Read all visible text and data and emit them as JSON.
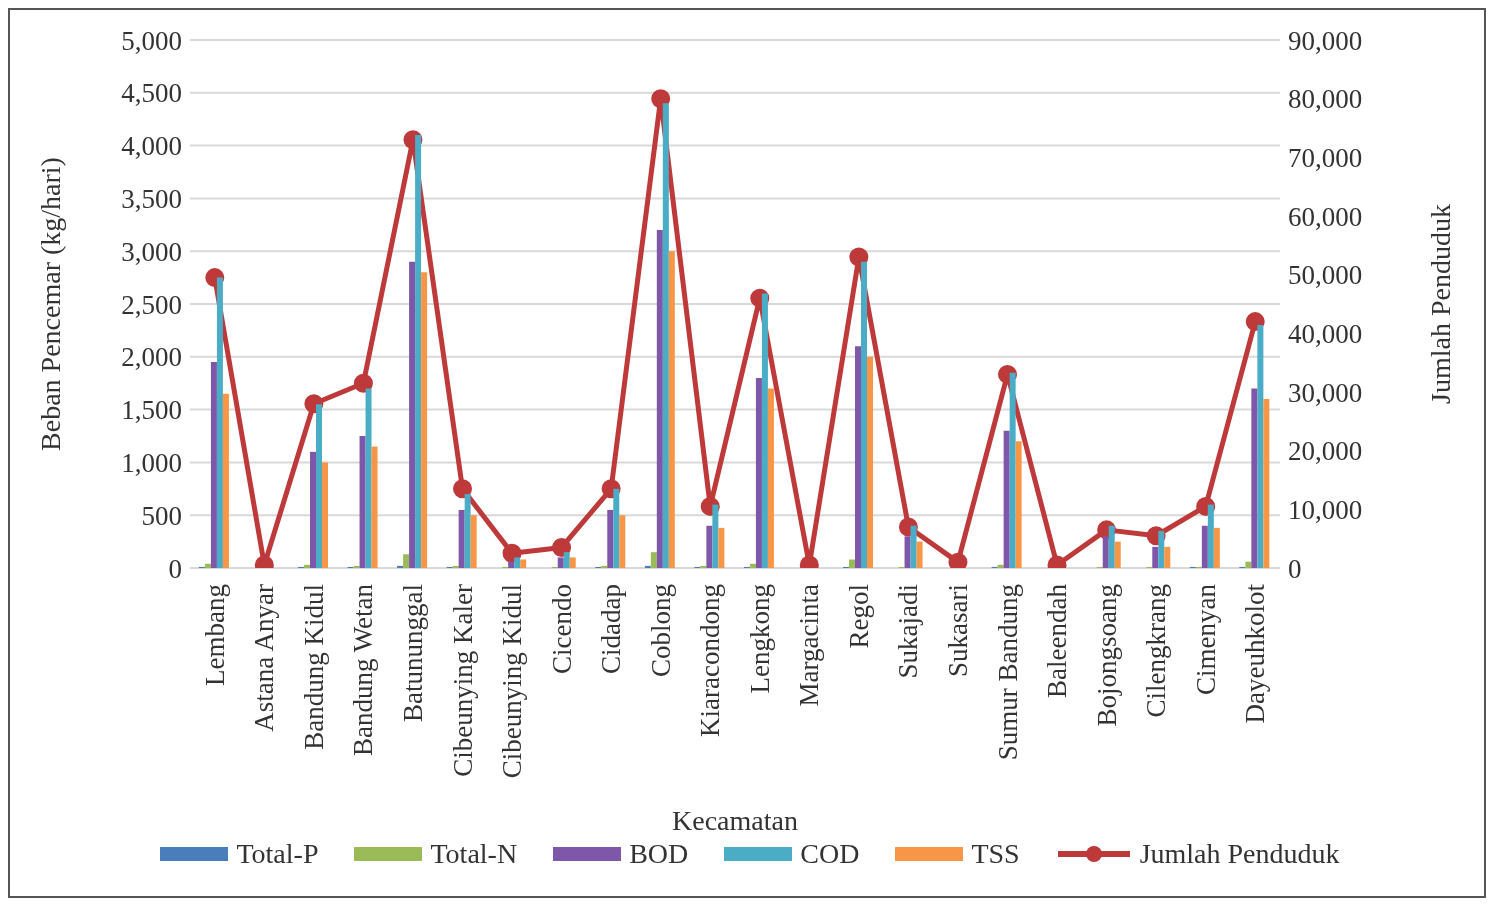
{
  "chart_data": {
    "type": "bar",
    "xlabel": "Kecamatan",
    "ylabel": "Beban Pencemar  (kg/hari)",
    "y2label": "Jumlah  Penduduk",
    "categories": [
      "Lembang",
      "Astana Anyar",
      "Bandung Kidul",
      "Bandung Wetan",
      "Batununggal",
      "Cibeunying Kaler",
      "Cibeunying Kidul",
      "Cicendo",
      "Cidadap",
      "Coblong",
      "Kiaracondong",
      "Lengkong",
      "Margacinta",
      "Regol",
      "Sukajadi",
      "Sukasari",
      "Sumur Bandung",
      "Baleendah",
      "Bojongsoang",
      "Cilengkrang",
      "Cimenyan",
      "Dayeuhkolot"
    ],
    "series": [
      {
        "name": "Total-P",
        "color": "#4a7ebb",
        "values": [
          10,
          0,
          10,
          10,
          20,
          10,
          0,
          0,
          10,
          20,
          10,
          10,
          0,
          10,
          0,
          0,
          10,
          0,
          0,
          0,
          10,
          10
        ]
      },
      {
        "name": "Total-N",
        "color": "#9bbb59",
        "values": [
          40,
          0,
          30,
          20,
          130,
          20,
          10,
          10,
          20,
          150,
          20,
          40,
          0,
          80,
          10,
          0,
          30,
          0,
          10,
          10,
          10,
          60
        ]
      },
      {
        "name": "BOD",
        "color": "#7e57a8",
        "values": [
          1950,
          0,
          1100,
          1250,
          2900,
          550,
          60,
          100,
          550,
          3200,
          400,
          1800,
          0,
          2100,
          300,
          0,
          1300,
          0,
          300,
          200,
          400,
          1700
        ]
      },
      {
        "name": "COD",
        "color": "#4bacc6",
        "values": [
          2750,
          0,
          1550,
          1700,
          4100,
          700,
          100,
          150,
          750,
          4400,
          600,
          2600,
          0,
          2900,
          400,
          0,
          1850,
          0,
          400,
          350,
          600,
          2300
        ]
      },
      {
        "name": "TSS",
        "color": "#f79646",
        "values": [
          1650,
          0,
          1000,
          1150,
          2800,
          500,
          80,
          100,
          500,
          3000,
          380,
          1700,
          0,
          2000,
          250,
          0,
          1200,
          0,
          250,
          200,
          380,
          1600
        ]
      },
      {
        "name": "Jumlah Penduduk",
        "type": "line",
        "axis": "y2",
        "color": "#be3a3a",
        "marker": "circle",
        "values": [
          49500,
          500,
          28000,
          31500,
          73000,
          13500,
          2500,
          3500,
          13500,
          80000,
          10500,
          46000,
          500,
          53000,
          7000,
          1000,
          33000,
          500,
          6500,
          5500,
          10500,
          42000
        ]
      }
    ],
    "ylim": [
      0,
      5000
    ],
    "yticks": [
      {
        "value": 0,
        "label": "0"
      },
      {
        "value": 500,
        "label": "500"
      },
      {
        "value": 1000,
        "label": "1,000"
      },
      {
        "value": 1500,
        "label": "1,500"
      },
      {
        "value": 2000,
        "label": "2,000"
      },
      {
        "value": 2500,
        "label": "2,500"
      },
      {
        "value": 3000,
        "label": "3,000"
      },
      {
        "value": 3500,
        "label": "3,500"
      },
      {
        "value": 4000,
        "label": "4,000"
      },
      {
        "value": 4500,
        "label": "4,500"
      },
      {
        "value": 5000,
        "label": "5,000"
      }
    ],
    "y2lim": [
      0,
      90000
    ],
    "y2ticks": [
      {
        "value": 0,
        "label": "0"
      },
      {
        "value": 10000,
        "label": "10,000"
      },
      {
        "value": 20000,
        "label": "20,000"
      },
      {
        "value": 30000,
        "label": "30,000"
      },
      {
        "value": 40000,
        "label": "40,000"
      },
      {
        "value": 50000,
        "label": "50,000"
      },
      {
        "value": 60000,
        "label": "60,000"
      },
      {
        "value": 70000,
        "label": "70,000"
      },
      {
        "value": 80000,
        "label": "80,000"
      },
      {
        "value": 90000,
        "label": "90,000"
      }
    ],
    "grid": "y",
    "legend": "bottom"
  }
}
